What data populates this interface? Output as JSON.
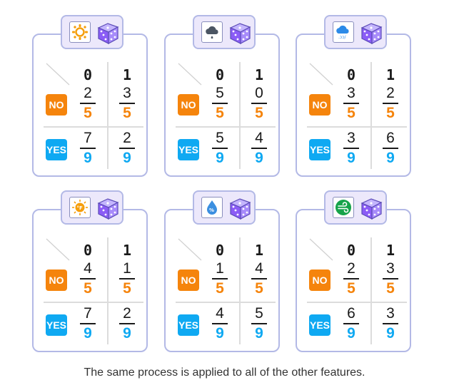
{
  "cards": [
    {
      "icon": "sun-icon",
      "col_headers": [
        "0",
        "1"
      ],
      "no_label": "NO",
      "yes_label": "YES",
      "no": [
        [
          "2",
          "5"
        ],
        [
          "3",
          "5"
        ]
      ],
      "yes": [
        [
          "7",
          "9"
        ],
        [
          "2",
          "9"
        ]
      ]
    },
    {
      "icon": "cloud-rain-icon",
      "col_headers": [
        "0",
        "1"
      ],
      "no_label": "NO",
      "yes_label": "YES",
      "no": [
        [
          "5",
          "5"
        ],
        [
          "0",
          "5"
        ]
      ],
      "yes": [
        [
          "5",
          "9"
        ],
        [
          "4",
          "9"
        ]
      ]
    },
    {
      "icon": "cloud-wind-icon",
      "col_headers": [
        "0",
        "1"
      ],
      "no_label": "NO",
      "yes_label": "YES",
      "no": [
        [
          "3",
          "5"
        ],
        [
          "2",
          "5"
        ]
      ],
      "yes": [
        [
          "3",
          "9"
        ],
        [
          "6",
          "9"
        ]
      ]
    },
    {
      "icon": "thermometer-sun-icon",
      "col_headers": [
        "0",
        "1"
      ],
      "no_label": "NO",
      "yes_label": "YES",
      "no": [
        [
          "4",
          "5"
        ],
        [
          "1",
          "5"
        ]
      ],
      "yes": [
        [
          "7",
          "9"
        ],
        [
          "2",
          "9"
        ]
      ]
    },
    {
      "icon": "humidity-drop-icon",
      "col_headers": [
        "0",
        "1"
      ],
      "no_label": "NO",
      "yes_label": "YES",
      "no": [
        [
          "1",
          "5"
        ],
        [
          "4",
          "5"
        ]
      ],
      "yes": [
        [
          "4",
          "9"
        ],
        [
          "5",
          "9"
        ]
      ]
    },
    {
      "icon": "wind-icon",
      "col_headers": [
        "0",
        "1"
      ],
      "no_label": "NO",
      "yes_label": "YES",
      "no": [
        [
          "2",
          "5"
        ],
        [
          "3",
          "5"
        ]
      ],
      "yes": [
        [
          "6",
          "9"
        ],
        [
          "3",
          "9"
        ]
      ]
    }
  ],
  "caption": "The same process is applied to all of the other features.",
  "colors": {
    "no": "#f5840c",
    "yes": "#0fa9f2",
    "border": "#b3b9e6",
    "tab_bg": "#ece8fb",
    "dice": "#a78bfa"
  }
}
